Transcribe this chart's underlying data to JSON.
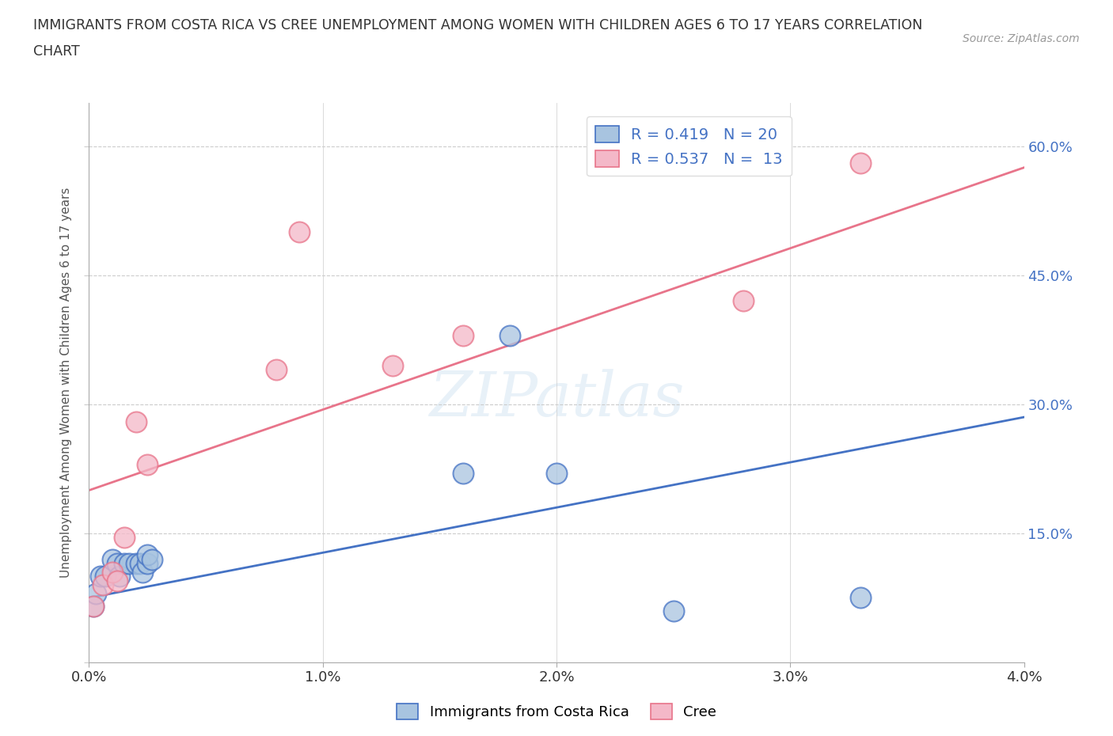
{
  "title_line1": "IMMIGRANTS FROM COSTA RICA VS CREE UNEMPLOYMENT AMONG WOMEN WITH CHILDREN AGES 6 TO 17 YEARS CORRELATION",
  "title_line2": "CHART",
  "source": "Source: ZipAtlas.com",
  "ylabel": "Unemployment Among Women with Children Ages 6 to 17 years",
  "xlim": [
    0.0,
    0.04
  ],
  "ylim": [
    0.0,
    0.65
  ],
  "xticks": [
    0.0,
    0.01,
    0.02,
    0.03,
    0.04
  ],
  "yticks": [
    0.0,
    0.15,
    0.3,
    0.45,
    0.6
  ],
  "right_ytick_labels": [
    "",
    "15.0%",
    "30.0%",
    "45.0%",
    "60.0%"
  ],
  "xtick_labels": [
    "0.0%",
    "1.0%",
    "2.0%",
    "3.0%",
    "4.0%"
  ],
  "blue_r": 0.419,
  "blue_n": 20,
  "pink_r": 0.537,
  "pink_n": 13,
  "blue_color": "#a8c4e0",
  "pink_color": "#f4b8c8",
  "blue_line_color": "#4472c4",
  "pink_line_color": "#e8748a",
  "legend_text_color": "#4472c4",
  "watermark": "ZIPatlas",
  "blue_points_x": [
    0.0002,
    0.0003,
    0.0005,
    0.0007,
    0.001,
    0.0012,
    0.0013,
    0.0015,
    0.0017,
    0.002,
    0.0022,
    0.0023,
    0.0025,
    0.0025,
    0.0027,
    0.016,
    0.018,
    0.02,
    0.025,
    0.033
  ],
  "blue_points_y": [
    0.065,
    0.08,
    0.1,
    0.1,
    0.12,
    0.115,
    0.1,
    0.115,
    0.115,
    0.115,
    0.115,
    0.105,
    0.115,
    0.125,
    0.12,
    0.22,
    0.38,
    0.22,
    0.06,
    0.075
  ],
  "pink_points_x": [
    0.0002,
    0.0006,
    0.001,
    0.0012,
    0.0015,
    0.002,
    0.0025,
    0.008,
    0.009,
    0.013,
    0.016,
    0.028,
    0.033
  ],
  "pink_points_y": [
    0.065,
    0.09,
    0.105,
    0.095,
    0.145,
    0.28,
    0.23,
    0.34,
    0.5,
    0.345,
    0.38,
    0.42,
    0.58
  ],
  "blue_line_x0": 0.0,
  "blue_line_y0": 0.075,
  "blue_line_x1": 0.04,
  "blue_line_y1": 0.285,
  "pink_line_x0": 0.0,
  "pink_line_y0": 0.2,
  "pink_line_x1": 0.04,
  "pink_line_y1": 0.575,
  "grid_color": "#cccccc",
  "background_color": "#ffffff",
  "right_ytick_color": "#4472c4"
}
